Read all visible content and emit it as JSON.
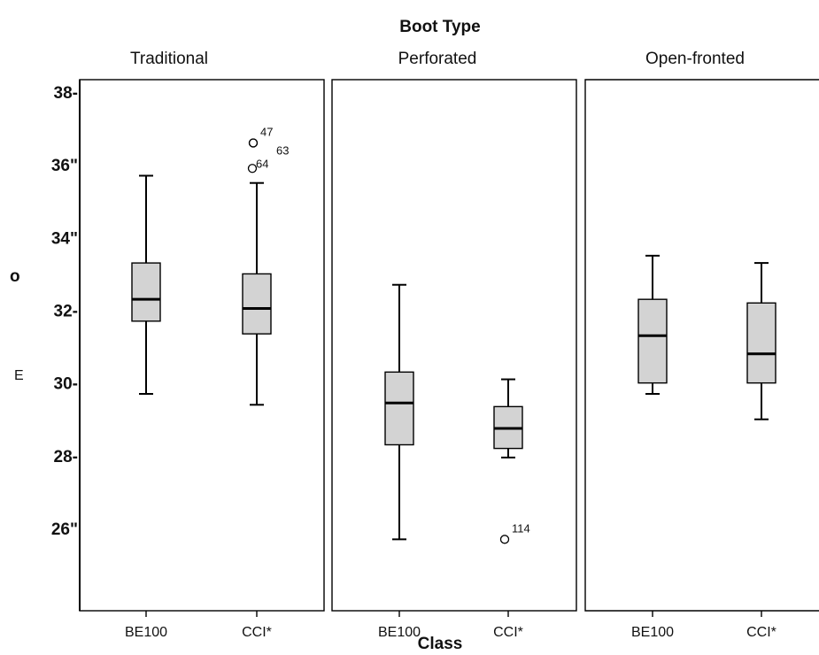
{
  "chart_data": {
    "type": "boxplot",
    "title": "Boot Type",
    "xlabel": "Class",
    "ylabel_fragments": [
      "o",
      "E"
    ],
    "ylim": [
      24.5,
      38
    ],
    "yticks": [
      {
        "value": 38,
        "label": "38-"
      },
      {
        "value": 36,
        "label": "36\""
      },
      {
        "value": 34,
        "label": "34\""
      },
      {
        "value": 32,
        "label": "32-"
      },
      {
        "value": 30,
        "label": "30-"
      },
      {
        "value": 28,
        "label": "28-"
      },
      {
        "value": 26,
        "label": "26\""
      }
    ],
    "facets": [
      {
        "label": "Traditional",
        "boxes": [
          {
            "category": "BE100",
            "whisker_low": 29.7,
            "q1": 31.7,
            "median": 32.3,
            "q3": 33.3,
            "whisker_high": 35.7,
            "outliers": []
          },
          {
            "category": "CCI*",
            "whisker_low": 29.4,
            "q1": 31.35,
            "median": 32.05,
            "q3": 33.0,
            "whisker_high": 35.5,
            "outliers": [
              {
                "value": 36.6,
                "label": "47"
              },
              {
                "value": 36.6,
                "label": "63"
              },
              {
                "value": 35.9,
                "label": "64"
              }
            ]
          }
        ]
      },
      {
        "label": "Perforated",
        "boxes": [
          {
            "category": "BE100",
            "whisker_low": 25.7,
            "q1": 28.3,
            "median": 29.45,
            "q3": 30.3,
            "whisker_high": 32.7,
            "outliers": []
          },
          {
            "category": "CCI*",
            "whisker_low": 27.95,
            "q1": 28.2,
            "median": 28.75,
            "q3": 29.35,
            "whisker_high": 30.1,
            "outliers": [
              {
                "value": 25.7,
                "label": "114"
              }
            ]
          }
        ]
      },
      {
        "label": "Open-fronted",
        "boxes": [
          {
            "category": "BE100",
            "whisker_low": 29.7,
            "q1": 30.0,
            "median": 31.3,
            "q3": 32.3,
            "whisker_high": 33.5,
            "outliers": []
          },
          {
            "category": "CCI*",
            "whisker_low": 29.0,
            "q1": 30.0,
            "median": 30.8,
            "q3": 32.2,
            "whisker_high": 33.3,
            "outliers": []
          }
        ]
      }
    ],
    "colors": {
      "box_fill": "#d3d3d3",
      "stroke": "#000000",
      "background": "#ffffff"
    },
    "grid": false,
    "legend": "none"
  }
}
